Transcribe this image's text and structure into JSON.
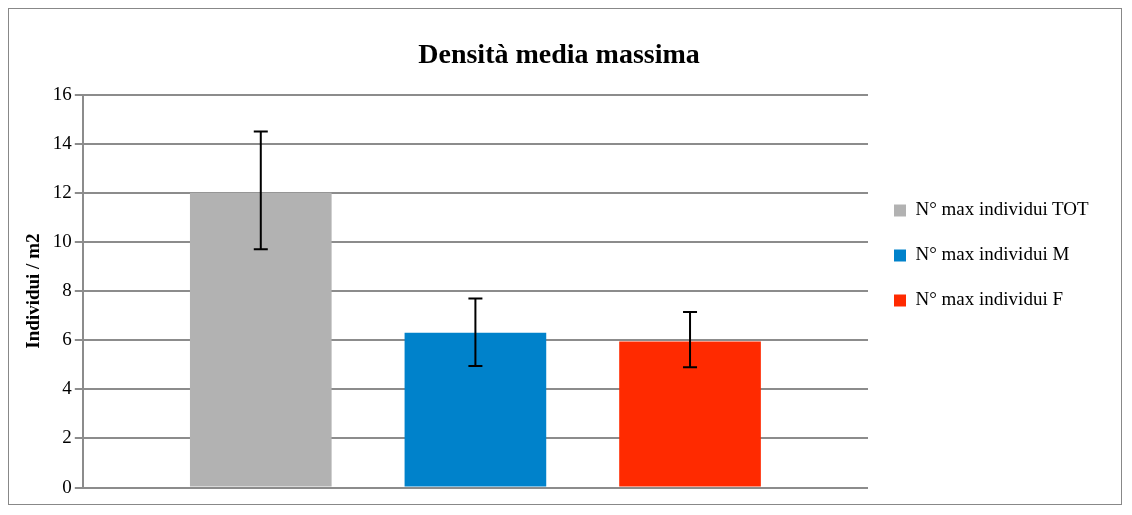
{
  "chart_data": {
    "type": "bar",
    "title": "Densità media massima",
    "ylabel": "Individui / m2",
    "categories": [
      null
    ],
    "series": [
      {
        "name": "N° max individui TOT",
        "color": "#b2b2b2",
        "values": [
          12.0
        ],
        "errors": [
          [
            9.7,
            14.5
          ]
        ]
      },
      {
        "name": "N° max individui M",
        "color": "#0082cb",
        "values": [
          6.3
        ],
        "errors": [
          [
            4.95,
            7.7
          ]
        ]
      },
      {
        "name": "N° max individui F",
        "color": "#ff2a00",
        "values": [
          5.95
        ],
        "errors": [
          [
            4.9,
            7.15
          ]
        ]
      }
    ],
    "ylim": [
      0,
      16
    ],
    "yticks": [
      0,
      2,
      4,
      6,
      8,
      10,
      12,
      14,
      16
    ],
    "grid": "y",
    "legend": "right"
  }
}
